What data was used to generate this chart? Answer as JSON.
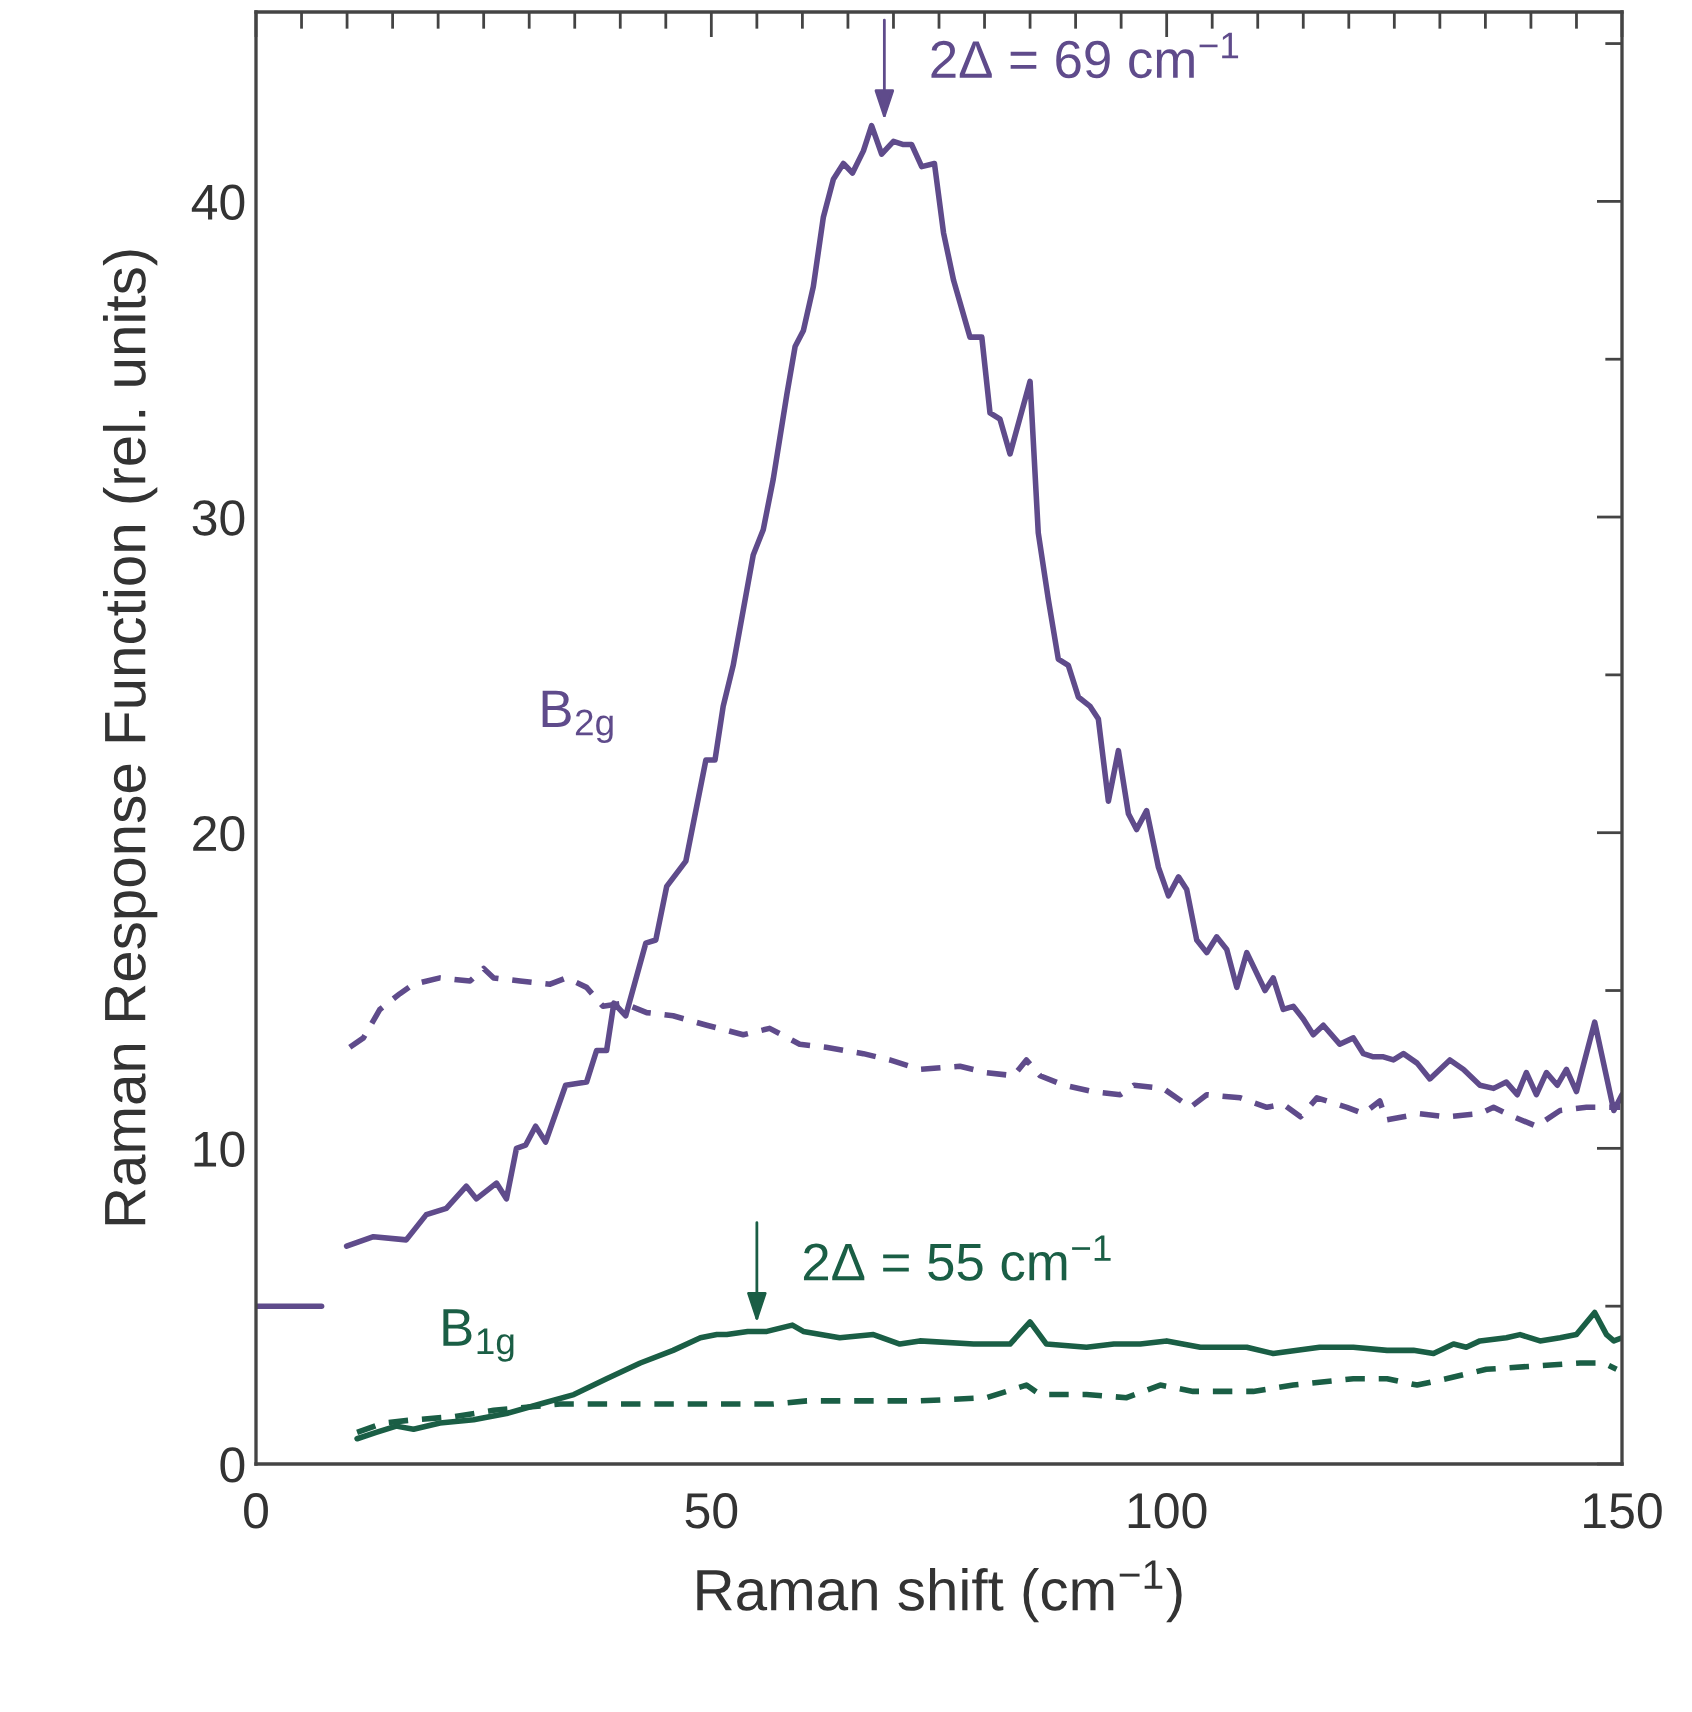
{
  "chart_data": {
    "type": "line",
    "xlabel": "Raman shift (cm$^{−1}$)",
    "ylabel": "Raman Response Function (rel. units)",
    "xlim": [
      0,
      150
    ],
    "xticks": [
      0,
      50,
      100,
      150
    ],
    "ylim": [
      0,
      46
    ],
    "yticks": [
      0,
      10,
      20,
      30,
      40
    ],
    "grid": false,
    "legend": false,
    "marker": "none",
    "series": [
      {
        "name": "B$_{2g}$",
        "color": "#5f4b8b",
        "line_style": "solid",
        "x": [
          9.95,
          12.9,
          16.5,
          18.7,
          20.9,
          23.1,
          24.2,
          26.4,
          27.5,
          28.6,
          29.6,
          30.7,
          31.8,
          34.0,
          36.3,
          37.4,
          38.5,
          39.3,
          40.6,
          42.8,
          43.9,
          45.1,
          47.2,
          49.4,
          50.4,
          51.3,
          52.4,
          54.6,
          55.7,
          56.8,
          58.3,
          59.2,
          60.1,
          61.2,
          62.3,
          63.4,
          64.5,
          65.5,
          66.7,
          67.6,
          68.7,
          70.0,
          71.1,
          72.0,
          73.1,
          74.5,
          75.5,
          76.6,
          78.4,
          79.7,
          80.6,
          81.7,
          82.8,
          85.0,
          85.9,
          87.0,
          88.1,
          89.2,
          90.3,
          91.6,
          92.5,
          93.6,
          94.7,
          95.8,
          96.7,
          97.8,
          99.1,
          100.2,
          101.3,
          102.2,
          103.3,
          104.4,
          105.5,
          106.6,
          107.7,
          108.8,
          110.8,
          111.7,
          112.8,
          113.9,
          115.0,
          116.1,
          117.2,
          119.0,
          120.5,
          121.6,
          122.7,
          123.8,
          124.9,
          126.0,
          127.5,
          128.9,
          131.1,
          132.6,
          134.4,
          135.9,
          137.3,
          138.5,
          139.5,
          140.6,
          141.7,
          142.9,
          143.9,
          145.0,
          147.0,
          149.1,
          150.0
        ],
        "values": [
          6.9,
          7.2,
          7.1,
          7.9,
          8.1,
          8.8,
          8.4,
          8.9,
          8.4,
          10.0,
          10.1,
          10.7,
          10.2,
          12.0,
          12.1,
          13.1,
          13.1,
          14.6,
          14.2,
          16.5,
          16.6,
          18.3,
          19.1,
          22.3,
          22.3,
          24.0,
          25.3,
          28.8,
          29.6,
          31.2,
          33.9,
          35.4,
          35.9,
          37.3,
          39.5,
          40.7,
          41.2,
          40.9,
          41.6,
          42.4,
          41.5,
          41.9,
          41.8,
          41.8,
          41.1,
          41.2,
          39.0,
          37.5,
          35.7,
          35.7,
          33.3,
          33.1,
          32.0,
          34.3,
          29.5,
          27.4,
          25.5,
          25.3,
          24.3,
          24.0,
          23.6,
          21.0,
          22.6,
          20.6,
          20.1,
          20.7,
          18.9,
          18.0,
          18.6,
          18.2,
          16.6,
          16.2,
          16.7,
          16.3,
          15.1,
          16.2,
          15.0,
          15.4,
          14.4,
          14.5,
          14.1,
          13.6,
          13.9,
          13.3,
          13.5,
          13.0,
          12.9,
          12.9,
          12.8,
          13.0,
          12.7,
          12.2,
          12.8,
          12.5,
          12.0,
          11.9,
          12.1,
          11.7,
          12.4,
          11.7,
          12.4,
          12.0,
          12.5,
          11.8,
          14.0,
          11.2,
          11.7
        ]
      },
      {
        "color": "#5f4b8b",
        "line_style": "dashed",
        "x": [
          10.3,
          11.8,
          13.6,
          15.8,
          17.3,
          20.2,
          23.5,
          25.0,
          26.1,
          29.0,
          32.3,
          34.1,
          36.3,
          38.1,
          40.3,
          42.9,
          45.8,
          49.5,
          53.5,
          56.4,
          59.7,
          62.6,
          66.7,
          69.6,
          72.9,
          77.3,
          80.2,
          83.2,
          84.6,
          86.1,
          88.7,
          91.9,
          94.9,
          96.4,
          99.6,
          102.6,
          104.4,
          108.1,
          111.0,
          112.8,
          114.7,
          116.5,
          119.8,
          121.6,
          123.4,
          124.1,
          127.8,
          130.7,
          134.4,
          135.9,
          138.1,
          140.6,
          143.2,
          146.1,
          148.7,
          149.8
        ],
        "values": [
          13.2,
          13.5,
          14.4,
          14.9,
          15.2,
          15.4,
          15.3,
          15.7,
          15.4,
          15.3,
          15.2,
          15.4,
          15.1,
          14.5,
          14.6,
          14.3,
          14.2,
          13.9,
          13.6,
          13.8,
          13.3,
          13.2,
          13.0,
          12.8,
          12.5,
          12.6,
          12.4,
          12.3,
          12.8,
          12.3,
          12.0,
          11.8,
          11.7,
          12.0,
          11.9,
          11.3,
          11.7,
          11.6,
          11.3,
          11.4,
          11.0,
          11.6,
          11.3,
          11.1,
          11.5,
          10.9,
          11.1,
          11.0,
          11.1,
          11.3,
          11.0,
          10.7,
          11.2,
          11.3,
          11.3,
          11.3
        ]
      },
      {
        "name": "B$_{1g}$",
        "color": "#1a5e45",
        "line_style": "solid",
        "x": [
          11.1,
          13.2,
          15.4,
          17.3,
          20.2,
          23.9,
          27.5,
          31.2,
          34.9,
          38.5,
          42.2,
          45.8,
          48.8,
          50.6,
          51.7,
          54.0,
          56.1,
          58.9,
          60.1,
          64.1,
          67.8,
          70.7,
          72.9,
          78.8,
          82.8,
          85.0,
          86.8,
          91.2,
          94.2,
          97.1,
          100.0,
          103.7,
          108.8,
          111.7,
          116.8,
          120.5,
          124.2,
          127.1,
          129.3,
          131.5,
          132.9,
          134.4,
          137.3,
          138.8,
          141.0,
          143.2,
          145.0,
          147.0,
          148.3,
          149.1,
          150.0
        ],
        "values": [
          0.8,
          1.0,
          1.2,
          1.1,
          1.3,
          1.4,
          1.6,
          1.9,
          2.2,
          2.7,
          3.2,
          3.6,
          4.0,
          4.1,
          4.1,
          4.2,
          4.2,
          4.4,
          4.2,
          4.0,
          4.1,
          3.8,
          3.9,
          3.8,
          3.8,
          4.5,
          3.8,
          3.7,
          3.8,
          3.8,
          3.9,
          3.7,
          3.7,
          3.5,
          3.7,
          3.7,
          3.6,
          3.6,
          3.5,
          3.8,
          3.7,
          3.9,
          4.0,
          4.1,
          3.9,
          4.0,
          4.1,
          4.8,
          4.1,
          3.9,
          4.0
        ]
      },
      {
        "color": "#1a5e45",
        "line_style": "dashed",
        "x": [
          11.1,
          14.0,
          17.3,
          21.7,
          26.1,
          29.7,
          33.4,
          39.2,
          45.8,
          52.4,
          56.8,
          60.5,
          67.8,
          72.9,
          80.2,
          84.6,
          86.1,
          91.2,
          95.6,
          99.3,
          102.9,
          109.5,
          113.9,
          120.5,
          124.2,
          127.5,
          130.7,
          135.1,
          140.3,
          145.4,
          148.0,
          149.4
        ],
        "values": [
          1.0,
          1.3,
          1.4,
          1.5,
          1.7,
          1.8,
          1.9,
          1.9,
          1.9,
          1.9,
          1.9,
          2.0,
          2.0,
          2.0,
          2.1,
          2.5,
          2.2,
          2.2,
          2.1,
          2.5,
          2.3,
          2.3,
          2.5,
          2.7,
          2.7,
          2.5,
          2.7,
          3.0,
          3.1,
          3.2,
          3.2,
          3.0
        ]
      },
      {
        "color": "#5f4b8b",
        "line_style": "solid",
        "x": [
          0,
          7.2
        ],
        "values": [
          5,
          5
        ]
      }
    ],
    "annotations": [
      {
        "text": "2Δ = 69 cm$^{−1}$",
        "x": 69,
        "y": 42.4
      },
      {
        "text": "2Δ = 55 cm$^{−1}$",
        "x": 55,
        "y": 4.3
      }
    ]
  }
}
